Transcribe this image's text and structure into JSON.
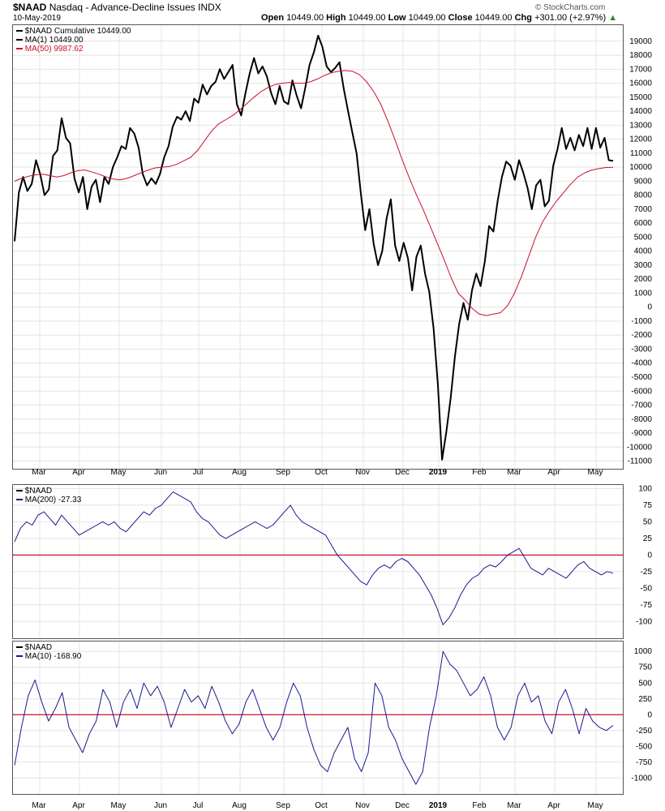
{
  "header": {
    "symbol": "$NAAD",
    "name": "Nasdaq - Advance-Decline Issues",
    "exchange": "INDX",
    "date": "10-May-2019",
    "open_label": "Open",
    "open": "10449.00",
    "high_label": "High",
    "high": "10449.00",
    "low_label": "Low",
    "low": "10449.00",
    "close_label": "Close",
    "close": "10449.00",
    "chg_label": "Chg",
    "chg": "+301.00 (+2.97%)",
    "copyright": "© StockCharts.com"
  },
  "colors": {
    "price": "#000000",
    "ma": "#c8102e",
    "osc": "#1a1a8c",
    "zero": "#c8102e",
    "grid": "#e4e4e4",
    "up": "#2e8b2e"
  },
  "chart_data": [
    {
      "type": "line",
      "panel": "main",
      "legend": [
        {
          "symbol": "$NAAD",
          "name": "Cumulative",
          "value": "10449.00",
          "color": "#000000"
        },
        {
          "symbol": "MA(1)",
          "value": "10449.00",
          "color": "#000000"
        },
        {
          "symbol": "MA(50)",
          "value": "9987.62",
          "color": "#c8102e"
        }
      ],
      "x_labels": [
        "Mar",
        "Apr",
        "May",
        "Jun",
        "Jul",
        "Aug",
        "Sep",
        "Oct",
        "Nov",
        "Dec",
        "2019",
        "Feb",
        "Mar",
        "Apr",
        "May"
      ],
      "y_ticks": [
        19000,
        18000,
        17000,
        16000,
        15000,
        14000,
        13000,
        12000,
        11000,
        10000,
        9000,
        8000,
        7000,
        6000,
        5000,
        4000,
        3000,
        2000,
        1000,
        0,
        -1000,
        -2000,
        -3000,
        -4000,
        -5000,
        -6000,
        -7000,
        -8000,
        -9000,
        -10000,
        -11000
      ],
      "ylim": [
        -11200,
        19800
      ],
      "series": [
        {
          "name": "$NAAD Cumulative",
          "values": [
            4700,
            8200,
            9300,
            8300,
            8800,
            10500,
            9500,
            8000,
            8400,
            10800,
            11200,
            13500,
            12100,
            11700,
            9200,
            8200,
            9300,
            7000,
            8600,
            9100,
            7500,
            9300,
            8800,
            10000,
            10700,
            11500,
            11300,
            12800,
            12400,
            11400,
            9500,
            8700,
            9200,
            8800,
            9500,
            10700,
            11500,
            12900,
            13600,
            13400,
            14000,
            13300,
            14900,
            14600,
            15900,
            15200,
            15800,
            16100,
            17000,
            16300,
            16800,
            17300,
            14500,
            13700,
            15300,
            16700,
            17800,
            16700,
            17200,
            16500,
            15300,
            14500,
            15800,
            14700,
            14500,
            16200,
            15100,
            14200,
            15700,
            17300,
            18200,
            19400,
            18600,
            17200,
            16800,
            17100,
            17500,
            15600,
            14000,
            12500,
            11000,
            8100,
            5500,
            7000,
            4500,
            3000,
            4000,
            6300,
            7700,
            4400,
            3300,
            4600,
            3500,
            1200,
            3600,
            4400,
            2400,
            1100,
            -1500,
            -5500,
            -10900,
            -8900,
            -6500,
            -3500,
            -1200,
            300,
            -900,
            1200,
            2400,
            1500,
            3300,
            5800,
            5400,
            7600,
            9300,
            10400,
            10100,
            9100,
            10500,
            9600,
            8500,
            7000,
            8700,
            9100,
            7200,
            7600,
            10100,
            11300,
            12800,
            11300,
            12100,
            11200,
            12300,
            11500,
            12800,
            11300,
            12800,
            11400,
            12100,
            10500,
            10449
          ]
        },
        {
          "name": "MA(50)",
          "values": [
            9000,
            9200,
            9350,
            9450,
            9500,
            9400,
            9300,
            9400,
            9600,
            9750,
            9800,
            9650,
            9500,
            9300,
            9150,
            9100,
            9200,
            9400,
            9600,
            9800,
            9950,
            10000,
            10050,
            10200,
            10450,
            10700,
            11200,
            11900,
            12600,
            13100,
            13400,
            13700,
            14100,
            14550,
            15000,
            15400,
            15700,
            15900,
            16000,
            16050,
            16000,
            16000,
            16100,
            16300,
            16550,
            16750,
            16850,
            16900,
            16850,
            16600,
            16100,
            15400,
            14500,
            13300,
            12000,
            10600,
            9300,
            8100,
            7000,
            5800,
            4600,
            3400,
            2100,
            1000,
            500,
            -100,
            -500,
            -600,
            -500,
            -400,
            100,
            1000,
            2200,
            3600,
            5000,
            6100,
            6900,
            7600,
            8200,
            8800,
            9300,
            9600,
            9800,
            9900,
            9980,
            9987.62
          ]
        }
      ]
    },
    {
      "type": "line",
      "panel": "ma200",
      "legend": [
        {
          "symbol": "$NAAD",
          "value": "",
          "color": "#000000"
        },
        {
          "symbol": "MA(200)",
          "value": "-27.33",
          "color": "#1a1a8c"
        }
      ],
      "y_ticks": [
        100,
        75,
        50,
        25,
        0,
        -25,
        -50,
        -75,
        -100
      ],
      "ylim": [
        -118,
        103
      ],
      "reference_line": 0,
      "series": [
        {
          "name": "MA(200)",
          "values": [
            20,
            40,
            50,
            45,
            60,
            65,
            55,
            45,
            60,
            50,
            40,
            30,
            35,
            40,
            45,
            50,
            45,
            50,
            40,
            35,
            45,
            55,
            65,
            60,
            70,
            75,
            85,
            95,
            90,
            85,
            80,
            65,
            55,
            50,
            40,
            30,
            25,
            30,
            35,
            40,
            45,
            50,
            45,
            40,
            45,
            55,
            65,
            75,
            60,
            50,
            45,
            40,
            35,
            30,
            15,
            0,
            -10,
            -20,
            -30,
            -40,
            -45,
            -30,
            -20,
            -15,
            -20,
            -10,
            -5,
            -10,
            -20,
            -30,
            -45,
            -60,
            -80,
            -105,
            -95,
            -80,
            -60,
            -45,
            -35,
            -30,
            -20,
            -15,
            -18,
            -10,
            0,
            5,
            10,
            -5,
            -20,
            -25,
            -30,
            -20,
            -25,
            -30,
            -35,
            -25,
            -15,
            -10,
            -20,
            -25,
            -30,
            -25,
            -27.33
          ]
        }
      ]
    },
    {
      "type": "line",
      "panel": "ma10",
      "legend": [
        {
          "symbol": "$NAAD",
          "value": "",
          "color": "#000000"
        },
        {
          "symbol": "MA(10)",
          "value": "-168.90",
          "color": "#1a1a8c"
        }
      ],
      "y_ticks": [
        1000,
        750,
        500,
        250,
        0,
        -250,
        -500,
        -750,
        -1000
      ],
      "ylim": [
        -1150,
        1080
      ],
      "reference_line": 0,
      "series": [
        {
          "name": "MA(10)",
          "values": [
            -800,
            -200,
            300,
            550,
            200,
            -100,
            100,
            350,
            -200,
            -400,
            -600,
            -300,
            -100,
            400,
            200,
            -200,
            200,
            400,
            100,
            500,
            300,
            450,
            200,
            -200,
            100,
            400,
            200,
            300,
            100,
            450,
            200,
            -100,
            -300,
            -150,
            200,
            400,
            100,
            -200,
            -400,
            -200,
            200,
            500,
            300,
            -200,
            -550,
            -800,
            -900,
            -600,
            -400,
            -200,
            -700,
            -900,
            -600,
            500,
            300,
            -200,
            -400,
            -700,
            -900,
            -1100,
            -900,
            -200,
            300,
            1000,
            800,
            700,
            500,
            300,
            400,
            600,
            300,
            -200,
            -400,
            -200,
            300,
            500,
            200,
            300,
            -100,
            -300,
            200,
            400,
            100,
            -300,
            100,
            -100,
            -200,
            -250,
            -168.9
          ]
        }
      ]
    }
  ]
}
